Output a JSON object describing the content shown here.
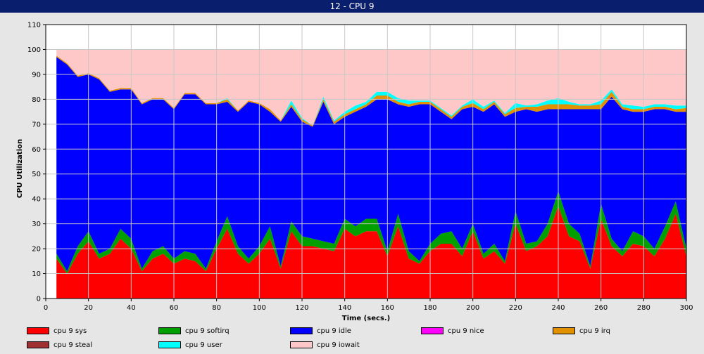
{
  "window": {
    "title": "12 - CPU 9"
  },
  "chart_data": {
    "type": "area",
    "stacked": true,
    "xlabel": "Time (secs.)",
    "ylabel": "CPU Utilization",
    "xlim": [
      0,
      300
    ],
    "ylim": [
      0,
      110
    ],
    "xticks": [
      0,
      20,
      40,
      60,
      80,
      100,
      120,
      140,
      160,
      180,
      200,
      220,
      240,
      260,
      280,
      300
    ],
    "yticks": [
      0,
      10,
      20,
      30,
      40,
      50,
      60,
      70,
      80,
      90,
      100,
      110
    ],
    "grid": true,
    "legend_position": "bottom",
    "x": [
      5,
      10,
      15,
      20,
      25,
      30,
      35,
      40,
      45,
      50,
      55,
      60,
      65,
      70,
      75,
      80,
      85,
      90,
      95,
      100,
      105,
      110,
      115,
      120,
      125,
      130,
      135,
      140,
      145,
      150,
      155,
      160,
      165,
      170,
      175,
      180,
      185,
      190,
      195,
      200,
      205,
      210,
      215,
      220,
      225,
      230,
      235,
      240,
      245,
      250,
      255,
      260,
      265,
      270,
      275,
      280,
      285,
      290,
      295,
      300
    ],
    "series": [
      {
        "name": "cpu 9 sys",
        "color": "#ff0000",
        "values": [
          16,
          10,
          18,
          23,
          16,
          18,
          24,
          20,
          11,
          16,
          18,
          14,
          16,
          15,
          11,
          20,
          28,
          18,
          14,
          18,
          24,
          12,
          27,
          21,
          21,
          20,
          19,
          28,
          25,
          27,
          27,
          17,
          29,
          16,
          14,
          19,
          22,
          22,
          17,
          27,
          16,
          19,
          14,
          30,
          19,
          21,
          25,
          37,
          25,
          23,
          12,
          32,
          21,
          17,
          22,
          21,
          17,
          24,
          34,
          17
        ]
      },
      {
        "name": "cpu 9 softirq",
        "color": "#00a000",
        "values": [
          2,
          1,
          3,
          4,
          2,
          2,
          4,
          4,
          1,
          3,
          3,
          2,
          3,
          3,
          1,
          3,
          5,
          3,
          2,
          3,
          5,
          1,
          4,
          4,
          3,
          3,
          3,
          4,
          4,
          5,
          5,
          2,
          5,
          3,
          1,
          3,
          4,
          5,
          3,
          3,
          2,
          3,
          1,
          5,
          3,
          2,
          5,
          6,
          5,
          3,
          1,
          6,
          3,
          2,
          5,
          4,
          3,
          5,
          5,
          3
        ]
      },
      {
        "name": "cpu 9 idle",
        "color": "#0000ff",
        "values": [
          79,
          83,
          68,
          63,
          70,
          63,
          56,
          60,
          66,
          61,
          59,
          60,
          63,
          64,
          66,
          55,
          46,
          54,
          63,
          57,
          46,
          58,
          46,
          46,
          45,
          56,
          48,
          41,
          46,
          45,
          48,
          61,
          44,
          58,
          63,
          56,
          49,
          45,
          56,
          47,
          57,
          56,
          58,
          40,
          54,
          52,
          46,
          33,
          46,
          50,
          63,
          38,
          57,
          57,
          48,
          50,
          56,
          47,
          36,
          55
        ]
      },
      {
        "name": "cpu 9 nice",
        "color": "#ff00ff",
        "values": [
          0,
          0,
          0,
          0,
          0,
          0,
          0,
          0,
          0,
          0,
          0,
          0,
          0,
          0,
          0,
          0,
          0,
          0,
          0,
          0,
          0,
          0,
          0,
          0,
          0,
          0,
          0,
          0,
          0,
          0,
          0,
          0,
          0,
          0,
          0,
          0,
          0,
          0,
          0,
          0,
          0,
          0,
          0,
          0,
          0,
          0,
          0,
          0,
          0,
          0,
          0,
          0,
          0,
          0,
          0,
          0,
          0,
          0,
          0,
          0
        ]
      },
      {
        "name": "cpu 9 irq",
        "color": "#e09000",
        "values": [
          0.5,
          0.5,
          0.5,
          0.5,
          0.5,
          0.5,
          0.5,
          0.5,
          0.5,
          0.5,
          0.5,
          0.5,
          0.5,
          0.5,
          0.5,
          0.5,
          1,
          0.5,
          0.5,
          0.5,
          1,
          0.5,
          1,
          1,
          0.5,
          1,
          1,
          1,
          1,
          1,
          1.5,
          1.5,
          1,
          1,
          1,
          1,
          1,
          1,
          1,
          1.5,
          1,
          1,
          1,
          1.5,
          1,
          2,
          2,
          2,
          2,
          1.5,
          1.5,
          2,
          2,
          1,
          1,
          1,
          1,
          1,
          1,
          1.5
        ]
      },
      {
        "name": "cpu 9 steal",
        "color": "#a03030",
        "values": [
          0,
          0,
          0,
          0,
          0,
          0,
          0,
          0,
          0,
          0,
          0,
          0,
          0,
          0,
          0,
          0,
          0,
          0,
          0,
          0,
          0,
          0,
          0,
          0,
          0,
          0,
          0,
          0,
          0,
          0,
          0,
          0,
          0,
          0,
          0,
          0,
          0,
          0,
          0,
          0,
          0,
          0,
          0,
          0,
          0,
          0,
          0,
          0,
          0,
          0,
          0,
          0,
          0,
          0,
          0,
          0,
          0,
          0,
          0,
          0
        ]
      },
      {
        "name": "cpu 9 user",
        "color": "#00ffff",
        "values": [
          0,
          0,
          0,
          0,
          0,
          0,
          0,
          0,
          0,
          0,
          0,
          0,
          0,
          0,
          0,
          0,
          0.5,
          0,
          0,
          0,
          0,
          0,
          1.5,
          0.5,
          0,
          1,
          0.5,
          1,
          1.5,
          1,
          1.5,
          1.5,
          1.5,
          1.5,
          0.5,
          0.5,
          0.5,
          0.5,
          0.5,
          1.5,
          1,
          0.5,
          0.5,
          2,
          0.5,
          1,
          1.5,
          2.5,
          1,
          0.5,
          0.5,
          1.5,
          1,
          1,
          1.5,
          1,
          1,
          1,
          1.5,
          1
        ]
      },
      {
        "name": "cpu 9 iowait",
        "color": "#ffc8c8",
        "values": [
          2.5,
          5.5,
          10.5,
          9.5,
          11.5,
          16.5,
          15.5,
          15.5,
          21.5,
          19.5,
          19.5,
          23.5,
          17.5,
          17.5,
          21.5,
          21.5,
          19.5,
          24.5,
          20.5,
          21.5,
          24,
          28.5,
          20.5,
          27.5,
          30.5,
          19,
          28.5,
          25,
          22.5,
          21,
          17,
          17,
          19.5,
          20.5,
          20.5,
          20.5,
          23.5,
          26.5,
          22.5,
          20,
          23,
          20.5,
          25.5,
          21.5,
          22.5,
          22,
          20.5,
          19.5,
          21,
          22,
          22,
          20.5,
          16,
          22,
          22.5,
          23,
          22,
          22,
          22.5,
          22.5
        ]
      }
    ]
  },
  "legend_icons": {
    "swatch": "color-swatch"
  }
}
